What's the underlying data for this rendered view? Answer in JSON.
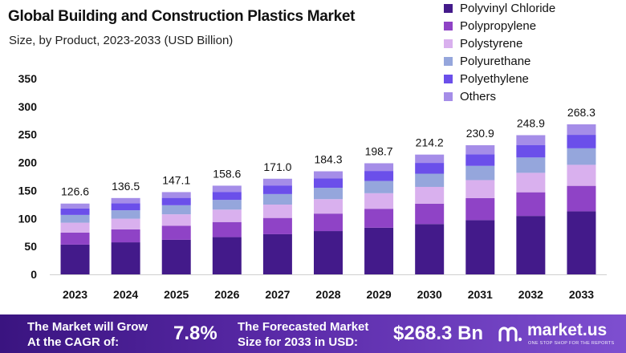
{
  "header": {
    "title": "Global Building and Construction Plastics Market",
    "subtitle": "Size, by Product, 2023-2033 (USD Billion)"
  },
  "chart_data": {
    "type": "bar",
    "stacked": true,
    "title": "Global Building and Construction Plastics Market",
    "subtitle": "Size, by Product, 2023-2033 (USD Billion)",
    "xlabel": "",
    "ylabel": "",
    "ylim": [
      0,
      350
    ],
    "yticks": [
      0,
      50,
      100,
      150,
      200,
      250,
      300,
      350
    ],
    "grid": false,
    "legend_position": "top-right",
    "categories": [
      "2023",
      "2024",
      "2025",
      "2026",
      "2027",
      "2028",
      "2029",
      "2030",
      "2031",
      "2032",
      "2033"
    ],
    "totals": [
      126.6,
      136.5,
      147.1,
      158.6,
      171.0,
      184.3,
      198.7,
      214.2,
      230.9,
      248.9,
      268.3
    ],
    "total_labels": [
      "126.6",
      "136.5",
      "147.1",
      "158.6",
      "171.0",
      "184.3",
      "198.7",
      "214.2",
      "230.9",
      "248.9",
      "268.3"
    ],
    "series": [
      {
        "name": "Polyvinyl Chloride",
        "color": "#431a8a",
        "values": [
          53.2,
          57.3,
          61.8,
          66.6,
          71.8,
          77.4,
          83.5,
          90.0,
          97.0,
          104.5,
          112.7
        ]
      },
      {
        "name": "Polypropylene",
        "color": "#8f43c6",
        "values": [
          21.5,
          23.2,
          25.0,
          27.0,
          29.1,
          31.3,
          33.8,
          36.4,
          39.3,
          42.3,
          45.6
        ]
      },
      {
        "name": "Polystyrene",
        "color": "#d9b0ee",
        "values": [
          17.7,
          19.1,
          20.6,
          22.2,
          23.9,
          25.8,
          27.8,
          30.0,
          32.3,
          34.8,
          37.6
        ]
      },
      {
        "name": "Polyurethane",
        "color": "#95a6dc",
        "values": [
          13.9,
          15.0,
          16.2,
          17.4,
          18.8,
          20.3,
          21.9,
          23.6,
          25.4,
          27.4,
          29.5
        ]
      },
      {
        "name": "Polyethylene",
        "color": "#6b4fea",
        "values": [
          11.4,
          12.3,
          13.2,
          14.3,
          15.4,
          16.6,
          17.9,
          19.3,
          20.8,
          22.4,
          24.1
        ]
      },
      {
        "name": "Others",
        "color": "#a58de8",
        "values": [
          8.9,
          9.6,
          10.3,
          11.1,
          12.0,
          12.9,
          13.8,
          14.9,
          16.1,
          17.5,
          18.8
        ]
      }
    ]
  },
  "banner": {
    "cagr_text_line1": "The Market will Grow",
    "cagr_text_line2": "At the CAGR of:",
    "cagr_value": "7.8%",
    "forecast_text_line1": "The Forecasted Market",
    "forecast_text_line2": "Size for 2033 in USD:",
    "forecast_value": "$268.3 Bn",
    "logo_name": "market.us",
    "logo_tagline": "ONE STOP SHOP FOR THE REPORTS",
    "logo_icon": "market-us-logo-icon"
  }
}
